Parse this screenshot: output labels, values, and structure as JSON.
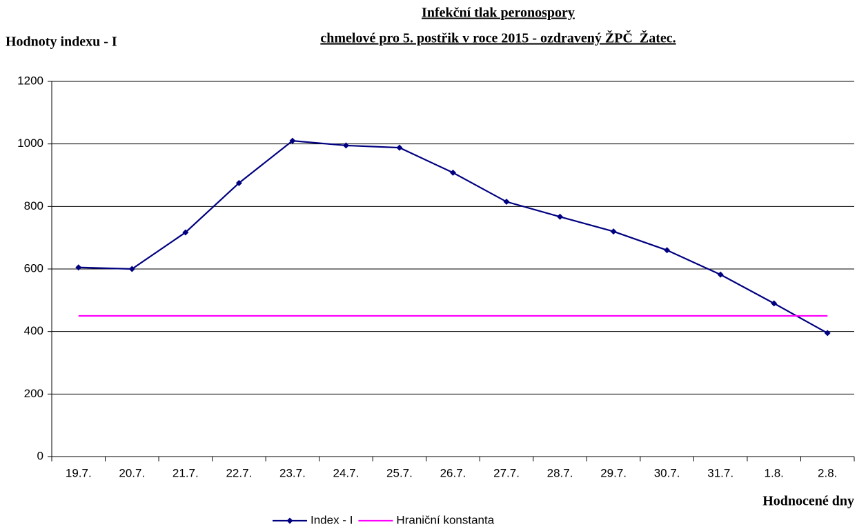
{
  "chart_data": {
    "type": "line",
    "title": "Infekční tlak peronospory",
    "subtitle": "chmelové pro 5. postřik  v roce 2015 - ozdravený ŽPČ_Žatec.",
    "y_label": "Hodnoty indexu  - I",
    "x_label": "Hodnocené dny",
    "categories": [
      "19.7.",
      "20.7.",
      "21.7.",
      "22.7.",
      "23.7.",
      "24.7.",
      "25.7.",
      "26.7.",
      "27.7.",
      "28.7.",
      "29.7.",
      "30.7.",
      "31.7.",
      "1.8.",
      "2.8."
    ],
    "series": [
      {
        "name": "Index - I",
        "color": "#000080",
        "marker": "diamond",
        "values": [
          605,
          600,
          717,
          875,
          1010,
          995,
          988,
          908,
          815,
          767,
          720,
          660,
          582,
          490,
          395
        ]
      },
      {
        "name": "Hraniční konstanta",
        "color": "#ff00ff",
        "marker": null,
        "values": [
          450,
          450,
          450,
          450,
          450,
          450,
          450,
          450,
          450,
          450,
          450,
          450,
          450,
          450,
          450
        ]
      }
    ],
    "ylim": [
      0,
      1200
    ],
    "yticks": [
      0,
      200,
      400,
      600,
      800,
      1000,
      1200
    ],
    "grid": true,
    "legend": "bottom"
  }
}
